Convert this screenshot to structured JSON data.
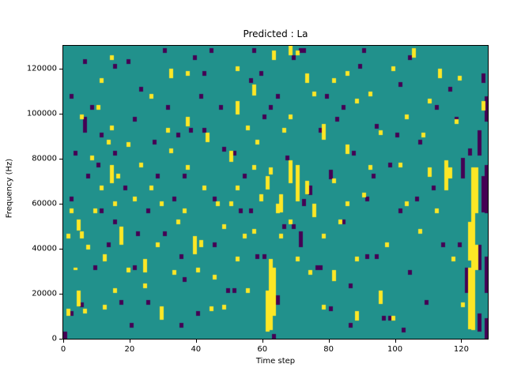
{
  "figure": {
    "title": "Predicted : La",
    "xlabel": "Time step",
    "ylabel": "Frequency (Hz)"
  },
  "chart_data": {
    "type": "heatmap",
    "title": "Predicted : La",
    "xlabel": "Time step",
    "ylabel": "Frequency (Hz)",
    "grid": {
      "cols": 128,
      "rows": 128
    },
    "x_range": [
      0,
      128
    ],
    "y_range": [
      0,
      130000
    ],
    "xticks": [
      0,
      20,
      40,
      60,
      80,
      100,
      120
    ],
    "yticks": [
      0,
      20000,
      40000,
      60000,
      80000,
      100000,
      120000
    ],
    "legend": "none",
    "colors": {
      "background": "#21918c",
      "high": "#fde725",
      "low": "#440154"
    },
    "cells_note": "sparse runs as [col, rowStart, rowEnd], rows counted bottom-up on a 128x128 grid",
    "cells": {
      "yellow_runs": [
        [
          1,
          10,
          12
        ],
        [
          1,
          44,
          45
        ],
        [
          2,
          55,
          56
        ],
        [
          3,
          30,
          30
        ],
        [
          4,
          14,
          20
        ],
        [
          4,
          47,
          51
        ],
        [
          5,
          44,
          46
        ],
        [
          5,
          96,
          97
        ],
        [
          6,
          11,
          12
        ],
        [
          7,
          39,
          40
        ],
        [
          8,
          78,
          79
        ],
        [
          9,
          55,
          56
        ],
        [
          10,
          100,
          101
        ],
        [
          11,
          112,
          113
        ],
        [
          11,
          65,
          66
        ],
        [
          12,
          34,
          36
        ],
        [
          12,
          13,
          14
        ],
        [
          13,
          85,
          86
        ],
        [
          14,
          122,
          123
        ],
        [
          14,
          91,
          92
        ],
        [
          14,
          68,
          75
        ],
        [
          15,
          58,
          59
        ],
        [
          15,
          20,
          21
        ],
        [
          16,
          70,
          71
        ],
        [
          17,
          41,
          48
        ],
        [
          19,
          84,
          85
        ],
        [
          19,
          29,
          30
        ],
        [
          21,
          60,
          61
        ],
        [
          23,
          75,
          76
        ],
        [
          24,
          29,
          34
        ],
        [
          24,
          22,
          23
        ],
        [
          26,
          105,
          106
        ],
        [
          26,
          65,
          66
        ],
        [
          28,
          40,
          41
        ],
        [
          29,
          58,
          59
        ],
        [
          29,
          8,
          13
        ],
        [
          31,
          90,
          91
        ],
        [
          32,
          114,
          117
        ],
        [
          32,
          81,
          82
        ],
        [
          33,
          28,
          29
        ],
        [
          34,
          50,
          51
        ],
        [
          36,
          55,
          56
        ],
        [
          37,
          115,
          116
        ],
        [
          37,
          93,
          96
        ],
        [
          37,
          74,
          75
        ],
        [
          39,
          37,
          44
        ],
        [
          40,
          29,
          30
        ],
        [
          41,
          40,
          42
        ],
        [
          42,
          65,
          66
        ],
        [
          43,
          86,
          89
        ],
        [
          44,
          12,
          13
        ],
        [
          45,
          26,
          27
        ],
        [
          46,
          58,
          59
        ],
        [
          48,
          48,
          49
        ],
        [
          48,
          13,
          14
        ],
        [
          50,
          77,
          81
        ],
        [
          50,
          58,
          59
        ],
        [
          52,
          117,
          118
        ],
        [
          52,
          98,
          103
        ],
        [
          52,
          65,
          66
        ],
        [
          52,
          34,
          35
        ],
        [
          54,
          44,
          45
        ],
        [
          55,
          91,
          92
        ],
        [
          55,
          20,
          21
        ],
        [
          57,
          106,
          110
        ],
        [
          57,
          74,
          75
        ],
        [
          57,
          46,
          47
        ],
        [
          58,
          85,
          86
        ],
        [
          59,
          60,
          62
        ],
        [
          61,
          3,
          20
        ],
        [
          61,
          65,
          70
        ],
        [
          62,
          4,
          34
        ],
        [
          62,
          72,
          74
        ],
        [
          63,
          10,
          30
        ],
        [
          63,
          122,
          125
        ],
        [
          64,
          55,
          58
        ],
        [
          65,
          55,
          62
        ],
        [
          65,
          44,
          45
        ],
        [
          66,
          90,
          91
        ],
        [
          68,
          124,
          127
        ],
        [
          68,
          96,
          97
        ],
        [
          68,
          68,
          77
        ],
        [
          68,
          50,
          51
        ],
        [
          70,
          124,
          125
        ],
        [
          70,
          60,
          75
        ],
        [
          70,
          34,
          35
        ],
        [
          73,
          112,
          115
        ],
        [
          73,
          63,
          68
        ],
        [
          74,
          28,
          29
        ],
        [
          75,
          106,
          107
        ],
        [
          75,
          53,
          58
        ],
        [
          78,
          87,
          93
        ],
        [
          78,
          44,
          45
        ],
        [
          78,
          13,
          14
        ],
        [
          81,
          112,
          113
        ],
        [
          81,
          68,
          69
        ],
        [
          81,
          25,
          29
        ],
        [
          83,
          50,
          51
        ],
        [
          85,
          115,
          116
        ],
        [
          85,
          81,
          84
        ],
        [
          85,
          58,
          59
        ],
        [
          88,
          103,
          104
        ],
        [
          88,
          34,
          35
        ],
        [
          88,
          8,
          11
        ],
        [
          90,
          62,
          63
        ],
        [
          92,
          106,
          107
        ],
        [
          92,
          74,
          75
        ],
        [
          95,
          89,
          90
        ],
        [
          95,
          15,
          20
        ],
        [
          97,
          40,
          41
        ],
        [
          99,
          117,
          118
        ],
        [
          99,
          8,
          9
        ],
        [
          101,
          75,
          76
        ],
        [
          103,
          96,
          97
        ],
        [
          103,
          58,
          59
        ],
        [
          105,
          123,
          126
        ],
        [
          107,
          46,
          47
        ],
        [
          108,
          88,
          89
        ],
        [
          110,
          103,
          104
        ],
        [
          110,
          71,
          74
        ],
        [
          112,
          55,
          56
        ],
        [
          113,
          114,
          117
        ],
        [
          115,
          65,
          77
        ],
        [
          116,
          70,
          74
        ],
        [
          117,
          34,
          35
        ],
        [
          118,
          94,
          95
        ],
        [
          119,
          113,
          114
        ],
        [
          120,
          14,
          15
        ],
        [
          122,
          4,
          30
        ],
        [
          122,
          34,
          50
        ],
        [
          123,
          4,
          74
        ],
        [
          124,
          55,
          74
        ],
        [
          124,
          30,
          40
        ],
        [
          126,
          100,
          103
        ]
      ],
      "dark_runs": [
        [
          0,
          0,
          2
        ],
        [
          2,
          10,
          11
        ],
        [
          2,
          60,
          61
        ],
        [
          2,
          105,
          106
        ],
        [
          3,
          80,
          81
        ],
        [
          5,
          14,
          15
        ],
        [
          6,
          90,
          96
        ],
        [
          6,
          120,
          121
        ],
        [
          7,
          70,
          71
        ],
        [
          8,
          100,
          101
        ],
        [
          9,
          30,
          31
        ],
        [
          10,
          75,
          76
        ],
        [
          11,
          55,
          56
        ],
        [
          11,
          88,
          89
        ],
        [
          13,
          40,
          41
        ],
        [
          15,
          50,
          51
        ],
        [
          15,
          80,
          81
        ],
        [
          15,
          118,
          119
        ],
        [
          17,
          15,
          16
        ],
        [
          18,
          65,
          66
        ],
        [
          19,
          120,
          121
        ],
        [
          20,
          5,
          6
        ],
        [
          21,
          30,
          31
        ],
        [
          21,
          95,
          96
        ],
        [
          22,
          45,
          46
        ],
        [
          23,
          108,
          109
        ],
        [
          25,
          15,
          16
        ],
        [
          25,
          55,
          56
        ],
        [
          27,
          85,
          86
        ],
        [
          28,
          70,
          71
        ],
        [
          30,
          45,
          46
        ],
        [
          30,
          125,
          126
        ],
        [
          31,
          100,
          101
        ],
        [
          33,
          60,
          61
        ],
        [
          34,
          88,
          89
        ],
        [
          35,
          35,
          36
        ],
        [
          35,
          5,
          6
        ],
        [
          36,
          25,
          26
        ],
        [
          36,
          70,
          71
        ],
        [
          38,
          90,
          91
        ],
        [
          39,
          122,
          123
        ],
        [
          40,
          10,
          11
        ],
        [
          41,
          105,
          106
        ],
        [
          42,
          90,
          91
        ],
        [
          42,
          115,
          116
        ],
        [
          44,
          125,
          126
        ],
        [
          45,
          40,
          41
        ],
        [
          45,
          60,
          61
        ],
        [
          47,
          100,
          101
        ],
        [
          48,
          82,
          83
        ],
        [
          49,
          20,
          21
        ],
        [
          51,
          80,
          81
        ],
        [
          51,
          20,
          21
        ],
        [
          53,
          55,
          56
        ],
        [
          54,
          70,
          71
        ],
        [
          56,
          55,
          56
        ],
        [
          56,
          112,
          113
        ],
        [
          57,
          125,
          126
        ],
        [
          58,
          35,
          36
        ],
        [
          59,
          115,
          116
        ],
        [
          60,
          35,
          36
        ],
        [
          60,
          96,
          97
        ],
        [
          62,
          100,
          101
        ],
        [
          63,
          0,
          1
        ],
        [
          64,
          15,
          18
        ],
        [
          64,
          105,
          106
        ],
        [
          66,
          48,
          49
        ],
        [
          67,
          78,
          79
        ],
        [
          69,
          48,
          49
        ],
        [
          69,
          122,
          123
        ],
        [
          71,
          40,
          46
        ],
        [
          71,
          125,
          126
        ],
        [
          72,
          58,
          60
        ],
        [
          72,
          125,
          126
        ],
        [
          74,
          63,
          66
        ],
        [
          76,
          30,
          31
        ],
        [
          77,
          90,
          91
        ],
        [
          77,
          30,
          31
        ],
        [
          79,
          105,
          106
        ],
        [
          80,
          12,
          13
        ],
        [
          80,
          70,
          73
        ],
        [
          82,
          95,
          96
        ],
        [
          84,
          50,
          51
        ],
        [
          84,
          100,
          101
        ],
        [
          86,
          22,
          23
        ],
        [
          86,
          5,
          6
        ],
        [
          87,
          80,
          81
        ],
        [
          89,
          118,
          119
        ],
        [
          90,
          125,
          126
        ],
        [
          91,
          60,
          61
        ],
        [
          91,
          35,
          36
        ],
        [
          93,
          70,
          71
        ],
        [
          94,
          92,
          93
        ],
        [
          94,
          35,
          36
        ],
        [
          96,
          8,
          9
        ],
        [
          98,
          75,
          76
        ],
        [
          98,
          8,
          9
        ],
        [
          100,
          88,
          89
        ],
        [
          101,
          55,
          56
        ],
        [
          101,
          110,
          111
        ],
        [
          102,
          3,
          4
        ],
        [
          104,
          28,
          29
        ],
        [
          104,
          122,
          123
        ],
        [
          106,
          60,
          61
        ],
        [
          107,
          85,
          86
        ],
        [
          109,
          15,
          16
        ],
        [
          111,
          65,
          66
        ],
        [
          112,
          100,
          101
        ],
        [
          114,
          40,
          41
        ],
        [
          116,
          108,
          109
        ],
        [
          118,
          95,
          96
        ],
        [
          119,
          40,
          41
        ],
        [
          120,
          70,
          78
        ],
        [
          121,
          20,
          30
        ],
        [
          122,
          80,
          82
        ],
        [
          125,
          3,
          10
        ],
        [
          125,
          30,
          40
        ],
        [
          125,
          80,
          90
        ],
        [
          126,
          55,
          70
        ],
        [
          126,
          112,
          115
        ],
        [
          127,
          0,
          8
        ],
        [
          127,
          20,
          35
        ],
        [
          127,
          55,
          75
        ],
        [
          127,
          95,
          105
        ]
      ]
    }
  }
}
